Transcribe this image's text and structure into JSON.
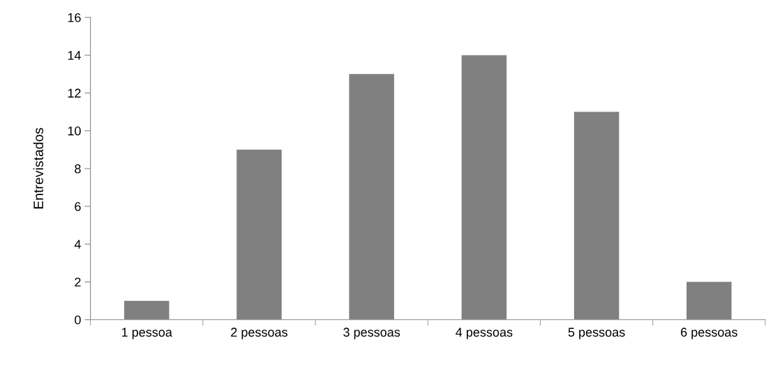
{
  "chart_data": {
    "type": "bar",
    "ylabel": "Entrevistados",
    "categories": [
      "1 pessoa",
      "2 pessoas",
      "3 pessoas",
      "4 pessoas",
      "5 pessoas",
      "6 pessoas"
    ],
    "values": [
      1,
      9,
      13,
      14,
      11,
      2
    ],
    "color": "#808080",
    "ylim": [
      0,
      16
    ],
    "yticks": [
      0,
      2,
      4,
      6,
      8,
      10,
      12,
      14,
      16
    ],
    "grid": false,
    "legend": false
  }
}
